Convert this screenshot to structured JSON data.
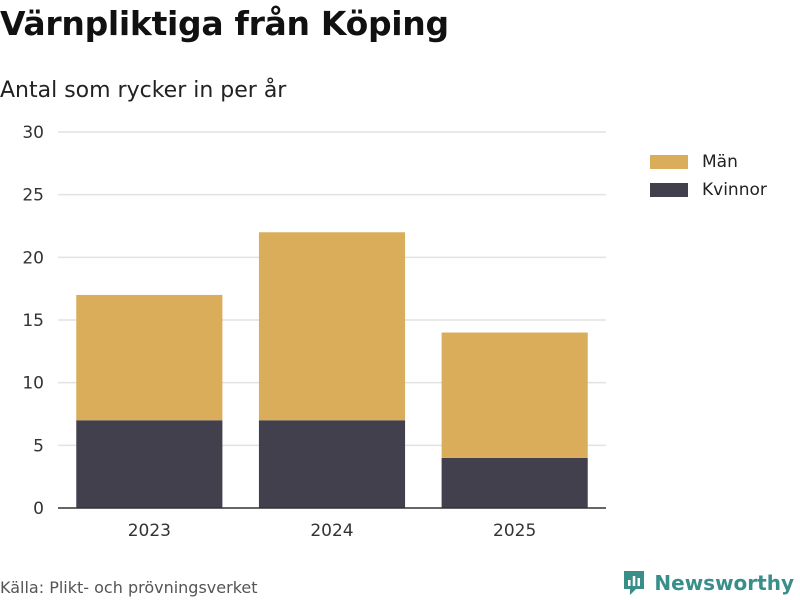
{
  "title": "Värnpliktiga från Köping",
  "subtitle": "Antal som rycker in per år",
  "source": "Källa: Plikt- och prövningsverket",
  "brand": {
    "name": "Newsworthy",
    "icon": "newsworthy-logo-icon",
    "color": "#3a8e8a"
  },
  "colors": {
    "man": "#d9ad59",
    "kvinnor": "#43404e",
    "grid": "#e2e2e2",
    "axis": "#333333"
  },
  "chart_data": {
    "type": "bar",
    "stacked": true,
    "title": "Värnpliktiga från Köping",
    "subtitle": "Antal som rycker in per år",
    "xlabel": "",
    "ylabel": "",
    "categories": [
      "2023",
      "2024",
      "2025"
    ],
    "series": [
      {
        "name": "Kvinnor",
        "values": [
          7,
          7,
          4
        ],
        "color": "#43404e"
      },
      {
        "name": "Män",
        "values": [
          10,
          15,
          10
        ],
        "color": "#d9ad59"
      }
    ],
    "ylim": [
      0,
      30
    ],
    "yticks": [
      0,
      5,
      10,
      15,
      20,
      25,
      30
    ],
    "grid": true,
    "legend": "top-right",
    "legend_order": [
      "Män",
      "Kvinnor"
    ]
  }
}
